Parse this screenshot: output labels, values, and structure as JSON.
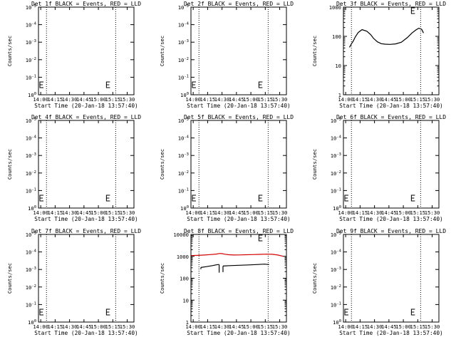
{
  "colors": {
    "events": "#000000",
    "lld": "#d40000",
    "axis": "#000000",
    "background": "#ffffff"
  },
  "chart_data": [
    {
      "type": "line",
      "panel": "1f",
      "title": "Det 1f BLACK = Events, RED = LLD",
      "xlabel": "Start Time (20-Jan-18 13:57:40)",
      "ylabel": "Counts/sec",
      "x_ticks": [
        "14:00",
        "14:15",
        "14:30",
        "14:45",
        "15:00",
        "15:15",
        "15:30"
      ],
      "y_ticks": [
        "10^0",
        "10^-1",
        "10^-2",
        "10^-3",
        "10^-4",
        "10^-5"
      ],
      "y_scale": "log-inverted",
      "ylim": [
        1,
        1e-05
      ],
      "series": []
    },
    {
      "type": "line",
      "panel": "2f",
      "title": "Det 2f BLACK = Events, RED = LLD",
      "xlabel": "Start Time (20-Jan-18 13:57:40)",
      "ylabel": "Counts/sec",
      "x_ticks": [
        "14:00",
        "14:15",
        "14:30",
        "14:45",
        "15:00",
        "15:15",
        "15:30"
      ],
      "y_ticks": [
        "10^0",
        "10^-1",
        "10^-2",
        "10^-3",
        "10^-4",
        "10^-5"
      ],
      "y_scale": "log-inverted",
      "ylim": [
        1,
        1e-05
      ],
      "series": []
    },
    {
      "type": "line",
      "panel": "3f",
      "title": "Det 3f BLACK = Events, RED = LLD",
      "xlabel": "Start Time (20-Jan-18 13:57:40)",
      "ylabel": "Counts/sec",
      "x_ticks": [
        "14:00",
        "14:15",
        "14:30",
        "14:45",
        "15:00",
        "15:15",
        "15:30"
      ],
      "y_ticks": [
        "1000",
        "100",
        "10",
        "1"
      ],
      "y_scale": "log",
      "ylim": [
        1,
        1000
      ],
      "series": [
        {
          "color": "#000000",
          "x": [
            "14:04",
            "14:06",
            "14:08",
            "14:10",
            "14:13",
            "14:17",
            "14:22",
            "14:26",
            "14:29",
            "14:33",
            "14:37",
            "14:41",
            "14:46",
            "14:52",
            "14:58",
            "15:04",
            "15:09",
            "15:13",
            "15:16",
            "15:19",
            "15:21"
          ],
          "y": [
            42,
            55,
            70,
            95,
            135,
            170,
            150,
            115,
            85,
            65,
            56,
            54,
            53,
            55,
            63,
            90,
            130,
            165,
            190,
            175,
            130
          ]
        }
      ]
    },
    {
      "type": "line",
      "panel": "4f",
      "title": "Det 4f BLACK = Events, RED = LLD",
      "xlabel": "Start Time (20-Jan-18 13:57:40)",
      "ylabel": "Counts/sec",
      "x_ticks": [
        "14:00",
        "14:15",
        "14:30",
        "14:45",
        "15:00",
        "15:15",
        "15:30"
      ],
      "y_ticks": [
        "10^0",
        "10^-1",
        "10^-2",
        "10^-3",
        "10^-4",
        "10^-5"
      ],
      "y_scale": "log-inverted",
      "ylim": [
        1,
        1e-05
      ],
      "series": []
    },
    {
      "type": "line",
      "panel": "5f",
      "title": "Det 5f BLACK = Events, RED = LLD",
      "xlabel": "Start Time (20-Jan-18 13:57:40)",
      "ylabel": "Counts/sec",
      "x_ticks": [
        "14:00",
        "14:15",
        "14:30",
        "14:45",
        "15:00",
        "15:15",
        "15:30"
      ],
      "y_ticks": [
        "10^0",
        "10^-1",
        "10^-2",
        "10^-3",
        "10^-4",
        "10^-5"
      ],
      "y_scale": "log-inverted",
      "ylim": [
        1,
        1e-05
      ],
      "series": []
    },
    {
      "type": "line",
      "panel": "6f",
      "title": "Det 6f BLACK = Events, RED = LLD",
      "xlabel": "Start Time (20-Jan-18 13:57:40)",
      "ylabel": "Counts/sec",
      "x_ticks": [
        "14:00",
        "14:15",
        "14:30",
        "14:45",
        "15:00",
        "15:15",
        "15:30"
      ],
      "y_ticks": [
        "10^0",
        "10^-1",
        "10^-2",
        "10^-3",
        "10^-4",
        "10^-5"
      ],
      "y_scale": "log-inverted",
      "ylim": [
        1,
        1e-05
      ],
      "series": []
    },
    {
      "type": "line",
      "panel": "7f",
      "title": "Det 7f BLACK = Events, RED = LLD",
      "xlabel": "Start Time (20-Jan-18 13:57:40)",
      "ylabel": "Counts/sec",
      "x_ticks": [
        "14:00",
        "14:15",
        "14:30",
        "14:45",
        "15:00",
        "15:15",
        "15:30"
      ],
      "y_ticks": [
        "10^0",
        "10^-1",
        "10^-2",
        "10^-3",
        "10^-4",
        "10^-5"
      ],
      "y_scale": "log-inverted",
      "ylim": [
        1,
        1e-05
      ],
      "series": []
    },
    {
      "type": "line",
      "panel": "8f",
      "title": "Det 8f BLACK = Events, RED = LLD",
      "xlabel": "Start Time (20-Jan-18 13:57:40)",
      "ylabel": "Counts/sec",
      "x_ticks": [
        "14:00",
        "14:15",
        "14:30",
        "14:45",
        "15:00",
        "15:15",
        "15:30"
      ],
      "y_ticks": [
        "10000",
        "1000",
        "100",
        "10",
        "1"
      ],
      "y_scale": "log",
      "ylim": [
        1,
        10000
      ],
      "series": [
        {
          "color": "#d40000",
          "x": [
            "13:58",
            "14:05",
            "14:12",
            "14:18",
            "14:24",
            "14:28",
            "14:30",
            "14:33",
            "14:37",
            "14:42",
            "14:48",
            "14:55",
            "15:02",
            "15:09",
            "15:16",
            "15:22",
            "15:28",
            "15:34"
          ],
          "y": [
            1080,
            1110,
            1150,
            1200,
            1270,
            1350,
            1320,
            1250,
            1180,
            1150,
            1160,
            1180,
            1200,
            1230,
            1260,
            1240,
            1150,
            1000
          ]
        },
        {
          "color": "#000000",
          "x": [
            "14:08",
            "14:14",
            "14:20",
            "14:24",
            "14:26",
            "14:27"
          ],
          "y": [
            310,
            340,
            375,
            410,
            420,
            420
          ]
        },
        {
          "color": "#000000",
          "x": [
            "14:31",
            "14:38",
            "14:48",
            "14:58",
            "15:06",
            "15:14",
            "15:19"
          ],
          "y": [
            360,
            375,
            390,
            405,
            420,
            440,
            420
          ]
        }
      ]
    },
    {
      "type": "line",
      "panel": "9f",
      "title": "Det 9f BLACK = Events, RED = LLD",
      "xlabel": "Start Time (20-Jan-18 13:57:40)",
      "ylabel": "Counts/sec",
      "x_ticks": [
        "14:00",
        "14:15",
        "14:30",
        "14:45",
        "15:00",
        "15:15",
        "15:30"
      ],
      "y_ticks": [
        "10^0",
        "10^-1",
        "10^-2",
        "10^-3",
        "10^-4",
        "10^-5"
      ],
      "y_scale": "log-inverted",
      "ylim": [
        1,
        1e-05
      ],
      "series": []
    }
  ]
}
